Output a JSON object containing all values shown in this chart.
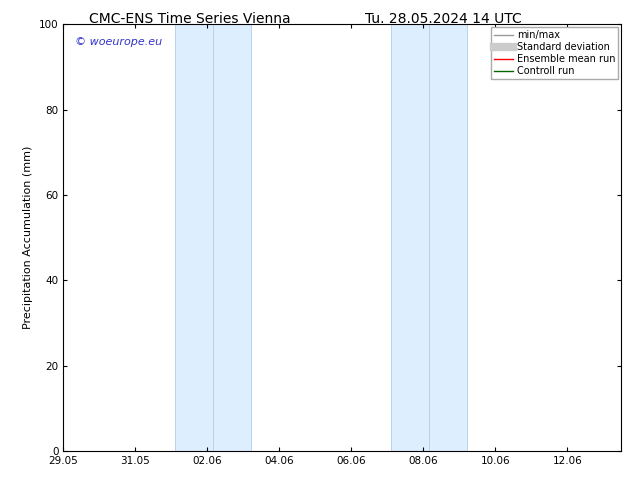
{
  "title_left": "CMC-ENS Time Series Vienna",
  "title_right": "Tu. 28.05.2024 14 UTC",
  "ylabel": "Precipitation Accumulation (mm)",
  "ylim": [
    0,
    100
  ],
  "yticks": [
    0,
    20,
    40,
    60,
    80,
    100
  ],
  "xlim": [
    0,
    15.5
  ],
  "xtick_labels": [
    "29.05",
    "31.05",
    "02.06",
    "04.06",
    "06.06",
    "08.06",
    "10.06",
    "12.06"
  ],
  "xtick_positions": [
    0,
    2,
    4,
    6,
    8,
    10,
    12,
    14
  ],
  "shaded_bands": [
    {
      "x_start": 3.0,
      "x_end": 3.7
    },
    {
      "x_start": 3.7,
      "x_end": 5.3
    },
    {
      "x_start": 5.3,
      "x_end": 6.0
    },
    {
      "x_start": 9.0,
      "x_end": 9.7
    },
    {
      "x_start": 9.7,
      "x_end": 11.3
    }
  ],
  "band_color_light": "#ddeeff",
  "band_color_main": "#cce5f8",
  "band_edge_color": "#b8d4ea",
  "background_color": "#ffffff",
  "watermark_text": "© woeurope.eu",
  "watermark_color": "#3333cc",
  "watermark_fontsize": 8,
  "legend_entries": [
    {
      "label": "min/max",
      "color": "#999999",
      "linewidth": 1.0,
      "linestyle": "-"
    },
    {
      "label": "Standard deviation",
      "color": "#cccccc",
      "linewidth": 5,
      "linestyle": "-"
    },
    {
      "label": "Ensemble mean run",
      "color": "#ff0000",
      "linewidth": 1.0,
      "linestyle": "-"
    },
    {
      "label": "Controll run",
      "color": "#006600",
      "linewidth": 1.0,
      "linestyle": "-"
    }
  ],
  "title_fontsize": 10,
  "tick_fontsize": 7.5,
  "legend_fontsize": 7,
  "ylabel_fontsize": 8
}
